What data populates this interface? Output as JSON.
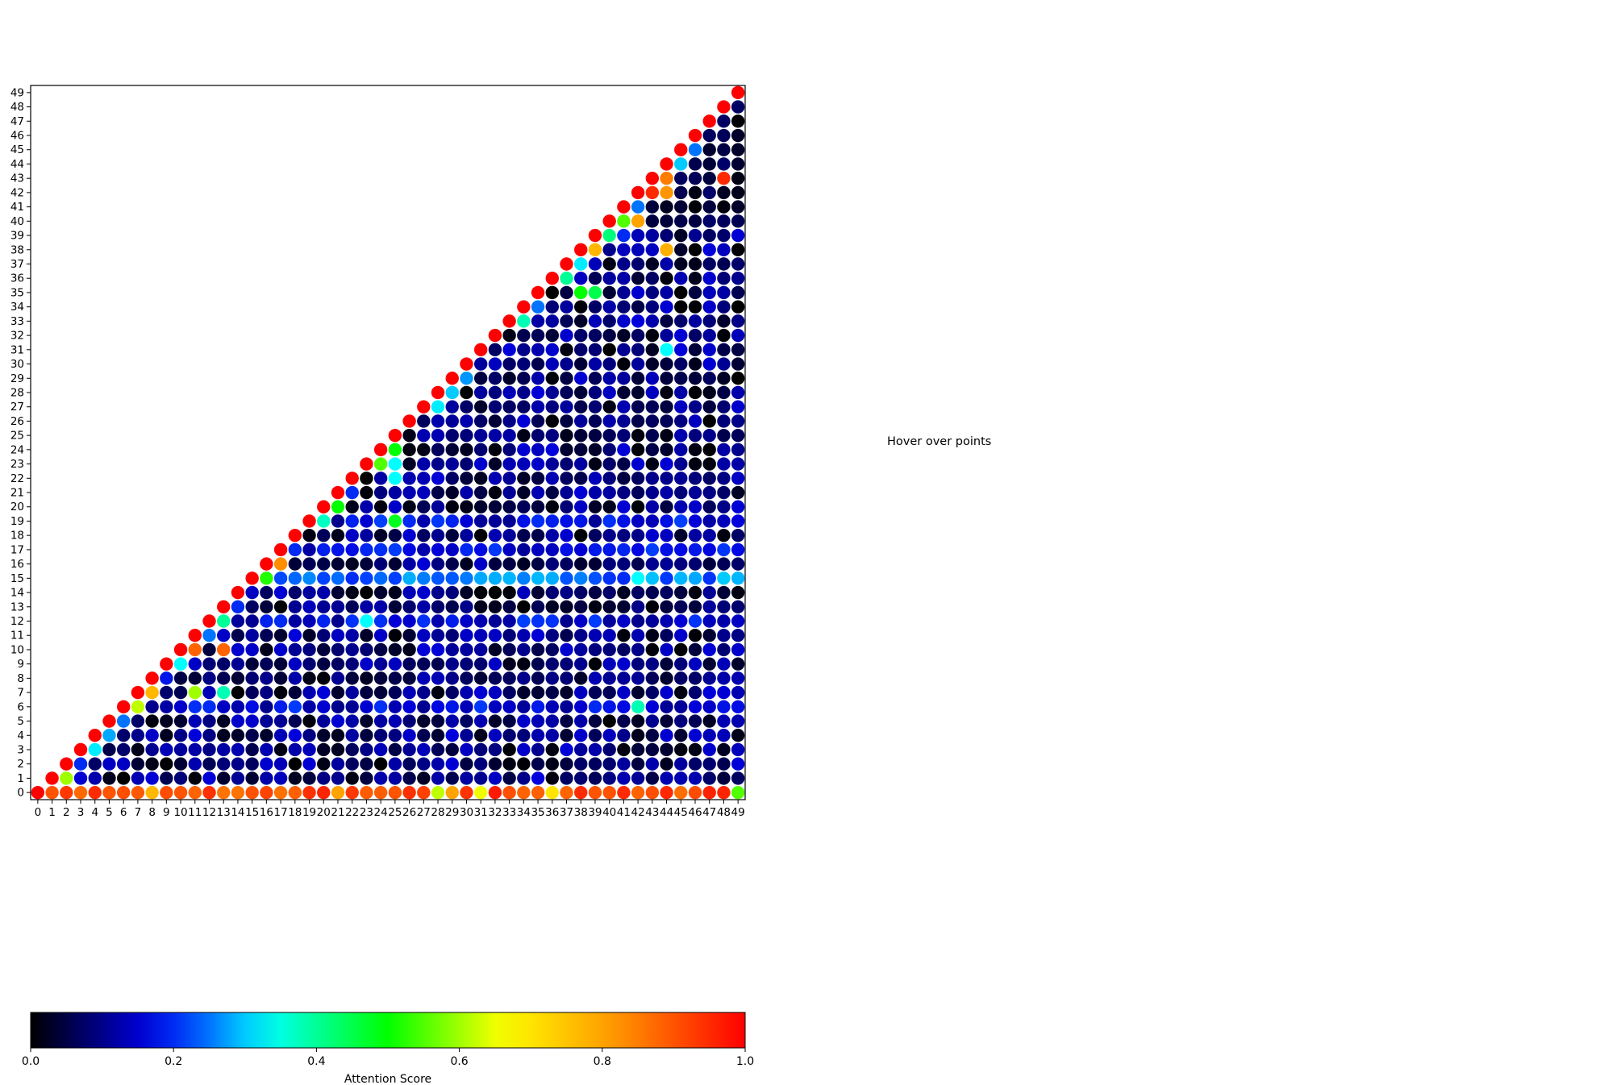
{
  "hover_text": "Hover over points",
  "colors": {
    "background": "#ffffff",
    "axes": "#000000"
  },
  "colormap": "jet-like (black → blue → cyan → green → yellow → orange → red)",
  "chart_data": {
    "type": "scatter",
    "title": "",
    "xlabel": "",
    "ylabel": "",
    "x": [
      0,
      1,
      2,
      3,
      4,
      5,
      6,
      7,
      8,
      9,
      10,
      11,
      12,
      13,
      14,
      15,
      16,
      17,
      18,
      19,
      20,
      21,
      22,
      23,
      24,
      25,
      26,
      27,
      28,
      29,
      30,
      31,
      32,
      33,
      34,
      35,
      36,
      37,
      38,
      39,
      40,
      41,
      42,
      43,
      44,
      45,
      46,
      47,
      48,
      49
    ],
    "y": [
      0,
      1,
      2,
      3,
      4,
      5,
      6,
      7,
      8,
      9,
      10,
      11,
      12,
      13,
      14,
      15,
      16,
      17,
      18,
      19,
      20,
      21,
      22,
      23,
      24,
      25,
      26,
      27,
      28,
      29,
      30,
      31,
      32,
      33,
      34,
      35,
      36,
      37,
      38,
      39,
      40,
      41,
      42,
      43,
      44,
      45,
      46,
      47,
      48,
      49
    ],
    "xlim": [
      -0.5,
      49.5
    ],
    "ylim": [
      -0.5,
      49.5
    ],
    "grid": false,
    "layout": "lower-right triangle: a point at every (x, y) with y <= x",
    "color_value_rule": "diagonal (x == y) points = 1.0; row y = 0 approx 0.75–0.95; off-diagonal points approx 0.0–0.35 with scattered highlights",
    "color_values": [
      {
        "x": 1,
        "y": 0,
        "value": 0.9
      },
      {
        "x": 2,
        "y": 1,
        "value": 0.6
      },
      {
        "x": 3,
        "y": 2,
        "value": 0.2
      },
      {
        "x": 4,
        "y": 3,
        "value": 0.32
      },
      {
        "x": 5,
        "y": 4,
        "value": 0.28
      },
      {
        "x": 6,
        "y": 5,
        "value": 0.25
      },
      {
        "x": 7,
        "y": 6,
        "value": 0.62
      },
      {
        "x": 8,
        "y": 7,
        "value": 0.77
      },
      {
        "x": 9,
        "y": 8,
        "value": 0.18
      },
      {
        "x": 10,
        "y": 9,
        "value": 0.33
      },
      {
        "x": 11,
        "y": 10,
        "value": 0.88
      },
      {
        "x": 12,
        "y": 11,
        "value": 0.25
      },
      {
        "x": 13,
        "y": 12,
        "value": 0.4
      },
      {
        "x": 14,
        "y": 13,
        "value": 0.2
      },
      {
        "x": 15,
        "y": 14,
        "value": 0.14
      },
      {
        "x": 16,
        "y": 15,
        "value": 0.52
      },
      {
        "x": 17,
        "y": 16,
        "value": 0.83
      },
      {
        "x": 18,
        "y": 17,
        "value": 0.2
      },
      {
        "x": 20,
        "y": 19,
        "value": 0.37
      },
      {
        "x": 21,
        "y": 20,
        "value": 0.5
      },
      {
        "x": 22,
        "y": 21,
        "value": 0.2
      },
      {
        "x": 24,
        "y": 23,
        "value": 0.55
      },
      {
        "x": 25,
        "y": 24,
        "value": 0.5
      },
      {
        "x": 25,
        "y": 23,
        "value": 0.33
      },
      {
        "x": 25,
        "y": 22,
        "value": 0.33
      },
      {
        "x": 23,
        "y": 12,
        "value": 0.33
      },
      {
        "x": 25,
        "y": 19,
        "value": 0.48
      },
      {
        "x": 13,
        "y": 10,
        "value": 0.88
      },
      {
        "x": 13,
        "y": 7,
        "value": 0.38
      },
      {
        "x": 11,
        "y": 7,
        "value": 0.6
      },
      {
        "x": 29,
        "y": 28,
        "value": 0.3
      },
      {
        "x": 28,
        "y": 27,
        "value": 0.32
      },
      {
        "x": 30,
        "y": 29,
        "value": 0.27
      },
      {
        "x": 34,
        "y": 33,
        "value": 0.38
      },
      {
        "x": 35,
        "y": 34,
        "value": 0.25
      },
      {
        "x": 37,
        "y": 36,
        "value": 0.4
      },
      {
        "x": 38,
        "y": 37,
        "value": 0.32
      },
      {
        "x": 39,
        "y": 38,
        "value": 0.77
      },
      {
        "x": 40,
        "y": 39,
        "value": 0.42
      },
      {
        "x": 41,
        "y": 40,
        "value": 0.55
      },
      {
        "x": 42,
        "y": 41,
        "value": 0.25
      },
      {
        "x": 42,
        "y": 40,
        "value": 0.8
      },
      {
        "x": 43,
        "y": 42,
        "value": 0.95
      },
      {
        "x": 44,
        "y": 43,
        "value": 0.85
      },
      {
        "x": 44,
        "y": 42,
        "value": 0.82
      },
      {
        "x": 45,
        "y": 44,
        "value": 0.3
      },
      {
        "x": 46,
        "y": 45,
        "value": 0.25
      },
      {
        "x": 48,
        "y": 43,
        "value": 0.95
      },
      {
        "x": 41,
        "y": 39,
        "value": 0.2
      },
      {
        "x": 44,
        "y": 38,
        "value": 0.78
      },
      {
        "x": 38,
        "y": 35,
        "value": 0.5
      },
      {
        "x": 39,
        "y": 35,
        "value": 0.45
      },
      {
        "x": 42,
        "y": 6,
        "value": 0.38
      },
      {
        "x": 42,
        "y": 15,
        "value": 0.33
      },
      {
        "x": 44,
        "y": 31,
        "value": 0.33
      },
      {
        "x": 49,
        "y": 0,
        "value": 0.55
      },
      {
        "x": 28,
        "y": 0,
        "value": 0.62
      },
      {
        "x": 31,
        "y": 0,
        "value": 0.65
      },
      {
        "x": 36,
        "y": 0,
        "value": 0.7
      },
      {
        "x": 8,
        "y": 0,
        "value": 0.77
      },
      {
        "x": 21,
        "y": 0,
        "value": 0.8
      },
      {
        "x": 29,
        "y": 0,
        "value": 0.8
      },
      {
        "x": 32,
        "y": 0,
        "value": 0.97
      }
    ],
    "colorbar": {
      "label": "Attention Score",
      "range": [
        0.0,
        1.0
      ],
      "ticks": [
        "0.0",
        "0.2",
        "0.4",
        "0.6",
        "0.8",
        "1.0"
      ],
      "orientation": "horizontal",
      "placement": "bottom"
    }
  }
}
